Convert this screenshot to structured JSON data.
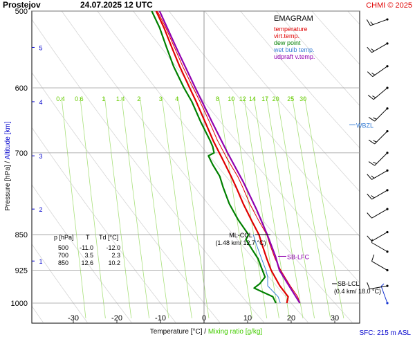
{
  "header": {
    "station": "Prostejov",
    "datetime": "24.07.2025 12 UTC",
    "credit": "CHMI © 2025"
  },
  "legend": {
    "title": "EMAGRAM",
    "entries": [
      {
        "label": "temperature",
        "color": "#e00000"
      },
      {
        "label": "virt.temp.",
        "color": "#e00000"
      },
      {
        "label": "dew point",
        "color": "#008000"
      },
      {
        "label": "wet bulb temp.",
        "color": "#3a7fd5"
      },
      {
        "label": "udpraft v.temp.",
        "color": "#9000b0"
      }
    ]
  },
  "axes": {
    "y_label_pressure": "Pressure [hPa]",
    "y_label_sep": " / ",
    "y_label_altitude": "Altitude [km]",
    "x_label_temp": "Temperature [°C]",
    "x_label_sep": " / ",
    "x_label_mix": "Mixing ratio [g/kg]",
    "pressure_ticks": [
      500,
      600,
      700,
      850,
      925,
      1000
    ],
    "temp_ticks": [
      -30,
      -20,
      -10,
      0,
      10,
      20,
      30
    ],
    "altitude_ticks": [
      {
        "label": "1",
        "p": 905
      },
      {
        "label": "2",
        "p": 800
      },
      {
        "label": "3",
        "p": 705
      },
      {
        "label": "4",
        "p": 620
      },
      {
        "label": "5",
        "p": 545
      }
    ],
    "mixing_ratio_labels": [
      "0.4",
      "0.6",
      "1",
      "1.4",
      "2",
      "3",
      "4",
      "8",
      "10",
      "12",
      "14",
      "17",
      "20",
      "25",
      "30"
    ]
  },
  "table": {
    "headers": [
      "p [hPa]",
      "T",
      "Td [°C]"
    ],
    "rows": [
      [
        "500",
        "-11.0",
        "-12.0"
      ],
      [
        "700",
        "3.5",
        "2.3"
      ],
      [
        "850",
        "12.6",
        "10.2"
      ]
    ]
  },
  "annotations": {
    "wbzl": {
      "label": "WBZL",
      "p": 655
    },
    "ml_ccl": {
      "label": "ML-CCL",
      "sub": "(1.48 km/ 12.7 °C)",
      "p": 850,
      "t": 12.7
    },
    "sb_lfc": {
      "label": "SB-LFC",
      "p": 895
    },
    "sb_lcl": {
      "label": "SB-LCL",
      "sub": "(0.4 km/ 18.0 °C)",
      "p": 955
    },
    "sfc": "SFC: 215 m ASL"
  },
  "chart_data": {
    "type": "line",
    "title": "Prostejov 24.07.2025 12 UTC",
    "xlabel": "Temperature [°C]",
    "ylabel": "Pressure [hPa]",
    "xlim": [
      -40,
      35
    ],
    "ylim": [
      1000,
      500
    ],
    "y_scale": "log",
    "series": [
      {
        "name": "temperature",
        "color": "#e00000",
        "width": 2.2,
        "points": [
          [
            1000,
            19.0
          ],
          [
            985,
            19.3
          ],
          [
            960,
            17.4
          ],
          [
            925,
            15.4
          ],
          [
            900,
            14.4
          ],
          [
            870,
            13.3
          ],
          [
            850,
            12.6
          ],
          [
            820,
            10.8
          ],
          [
            790,
            9.0
          ],
          [
            760,
            7.4
          ],
          [
            740,
            6.2
          ],
          [
            710,
            4.2
          ],
          [
            700,
            3.5
          ],
          [
            680,
            2.1
          ],
          [
            650,
            0.2
          ],
          [
            620,
            -1.8
          ],
          [
            600,
            -3.3
          ],
          [
            570,
            -5.6
          ],
          [
            545,
            -7.4
          ],
          [
            520,
            -9.2
          ],
          [
            500,
            -11.0
          ]
        ]
      },
      {
        "name": "virt.temp.",
        "color": "#e00000",
        "width": 1,
        "points": [
          [
            1000,
            22.0
          ],
          [
            985,
            21.5
          ],
          [
            960,
            19.8
          ],
          [
            925,
            17.6
          ],
          [
            900,
            16.3
          ],
          [
            870,
            15.1
          ],
          [
            850,
            14.4
          ],
          [
            820,
            12.4
          ],
          [
            790,
            10.5
          ],
          [
            760,
            8.9
          ],
          [
            740,
            7.7
          ],
          [
            710,
            5.3
          ],
          [
            700,
            4.6
          ],
          [
            680,
            3.1
          ],
          [
            650,
            1.2
          ],
          [
            620,
            -0.9
          ],
          [
            600,
            -2.5
          ],
          [
            570,
            -4.9
          ],
          [
            545,
            -6.8
          ],
          [
            520,
            -8.8
          ],
          [
            500,
            -10.7
          ]
        ]
      },
      {
        "name": "dew point",
        "color": "#008000",
        "width": 2.2,
        "points": [
          [
            1000,
            16.5
          ],
          [
            985,
            15.8
          ],
          [
            965,
            11.5
          ],
          [
            955,
            12.8
          ],
          [
            940,
            14.0
          ],
          [
            925,
            13.4
          ],
          [
            900,
            12.4
          ],
          [
            880,
            11.0
          ],
          [
            860,
            9.6
          ],
          [
            850,
            10.2
          ],
          [
            820,
            7.8
          ],
          [
            790,
            5.8
          ],
          [
            760,
            4.4
          ],
          [
            740,
            3.6
          ],
          [
            720,
            2.0
          ],
          [
            705,
            1.0
          ],
          [
            700,
            2.3
          ],
          [
            690,
            2.0
          ],
          [
            680,
            1.4
          ],
          [
            650,
            -0.8
          ],
          [
            620,
            -2.8
          ],
          [
            600,
            -4.6
          ],
          [
            570,
            -7.0
          ],
          [
            545,
            -8.6
          ],
          [
            520,
            -10.2
          ],
          [
            500,
            -12.0
          ]
        ]
      },
      {
        "name": "wet bulb temp.",
        "color": "#3a7fd5",
        "width": 1,
        "points": [
          [
            1000,
            17.5
          ],
          [
            985,
            17.0
          ],
          [
            960,
            14.6
          ],
          [
            940,
            14.6
          ],
          [
            925,
            14.2
          ],
          [
            900,
            13.2
          ],
          [
            870,
            12.0
          ],
          [
            850,
            11.3
          ]
        ]
      },
      {
        "name": "udpraft v.temp.",
        "color": "#9000b0",
        "width": 2.2,
        "points": [
          [
            1000,
            22.0
          ],
          [
            960,
            19.5
          ],
          [
            925,
            17.3
          ],
          [
            895,
            16.4
          ],
          [
            850,
            14.5
          ],
          [
            800,
            12.0
          ],
          [
            750,
            9.0
          ],
          [
            700,
            5.4
          ],
          [
            650,
            1.8
          ],
          [
            600,
            -2.0
          ],
          [
            550,
            -6.0
          ],
          [
            500,
            -10.2
          ]
        ]
      }
    ],
    "wind_barbs": [
      {
        "p": 1000,
        "dir": 340,
        "speed": 5
      },
      {
        "p": 960,
        "dir": 260,
        "speed": 10
      },
      {
        "p": 925,
        "dir": 300,
        "speed": 10
      },
      {
        "p": 885,
        "dir": 300,
        "speed": 5
      },
      {
        "p": 845,
        "dir": 240,
        "speed": 10
      },
      {
        "p": 800,
        "dir": 240,
        "speed": 10
      },
      {
        "p": 765,
        "dir": 240,
        "speed": 15
      },
      {
        "p": 730,
        "dir": 240,
        "speed": 15
      },
      {
        "p": 700,
        "dir": 225,
        "speed": 15
      },
      {
        "p": 665,
        "dir": 225,
        "speed": 15
      },
      {
        "p": 630,
        "dir": 225,
        "speed": 15
      },
      {
        "p": 600,
        "dir": 230,
        "speed": 15
      },
      {
        "p": 570,
        "dir": 235,
        "speed": 15
      },
      {
        "p": 540,
        "dir": 240,
        "speed": 15
      },
      {
        "p": 510,
        "dir": 250,
        "speed": 15
      }
    ]
  }
}
